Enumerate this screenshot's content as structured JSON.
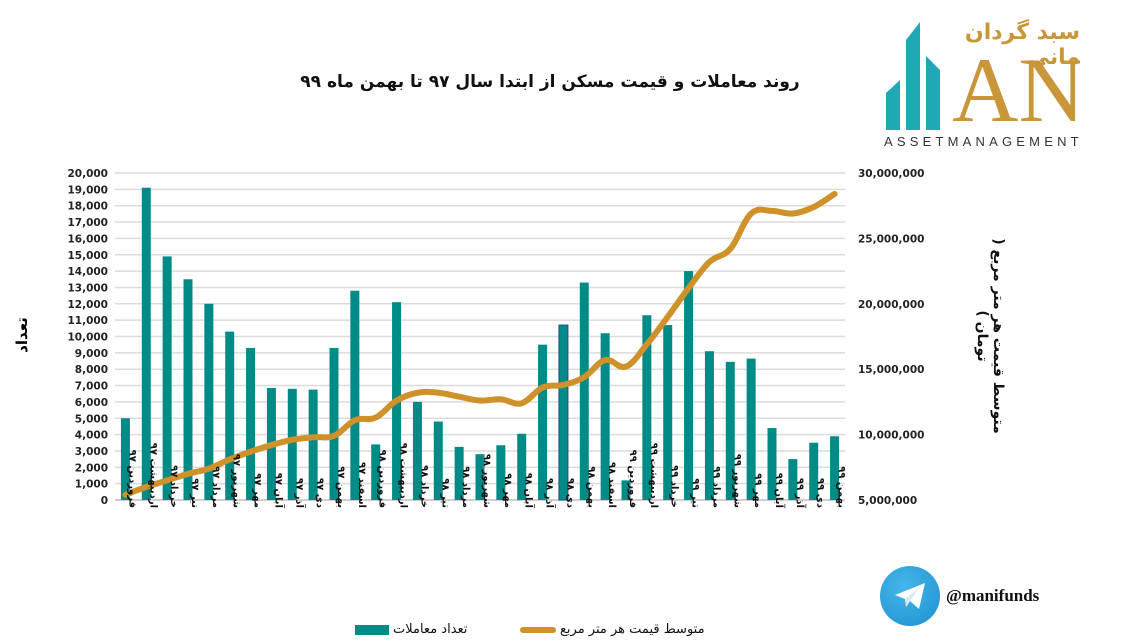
{
  "page": {
    "title": "روند معاملات و قیمت مسکن از ابتدا سال ۹۷ تا بهمن ماه ۹۹"
  },
  "logo": {
    "persian_name": "سبد گردان مانی",
    "brand_letters": "ANI",
    "subtitle": "ASSETMANAGEMENT"
  },
  "telegram": {
    "icon": "telegram-icon",
    "handle": "@manifunds"
  },
  "colors": {
    "bar": "#008b87",
    "line": "#cf9129",
    "grid": "#dcdcdc",
    "highlight_bar_edge": "#1f4e8c"
  },
  "chart_data": {
    "type": "bar",
    "combo": "bar+line (dual axis)",
    "title": "روند معاملات و قیمت مسکن از ابتدا سال ۹۷ تا بهمن ماه ۹۹",
    "ylabel": "تعداد",
    "ylabel_right": "متوسط قیمت هر متر مربع ( تومان )",
    "ylim": [
      0,
      20000
    ],
    "ylim_right": [
      5000000,
      30000000
    ],
    "yticks": [
      "0",
      "1,000",
      "2,000",
      "3,000",
      "4,000",
      "5,000",
      "6,000",
      "7,000",
      "8,000",
      "9,000",
      "10,000",
      "11,000",
      "12,000",
      "13,000",
      "14,000",
      "15,000",
      "16,000",
      "17,000",
      "18,000",
      "19,000",
      "20,000"
    ],
    "yticks_right": [
      "5,000,000",
      "10,000,000",
      "15,000,000",
      "20,000,000",
      "25,000,000",
      "30,000,000"
    ],
    "grid": true,
    "legend_position": "bottom",
    "categories": [
      "فروردین ۹۷",
      "اردیبهشت ۹۷",
      "خرداد ۹۷",
      "تیر ۹۷",
      "مرداد ۹۷",
      "شهریور ۹۷",
      "مهر ۹۷",
      "آبان ۹۷",
      "آذر ۹۷",
      "دی ۹۷",
      "بهمن ۹۷",
      "اسفند ۹۷",
      "فروردین ۹۸",
      "اردیبهشت ۹۸",
      "خرداد ۹۸",
      "تیر ۹۸",
      "مرداد ۹۸",
      "شهریور ۹۸",
      "مهر ۹۸",
      "آبان ۹۸",
      "آذر ۹۸",
      "دی ۹۸",
      "بهمن ۹۸",
      "اسفند ۹۸",
      "فروردین ۹۹",
      "اردیبهشت ۹۹",
      "خرداد ۹۹",
      "تیر ۹۹",
      "مرداد ۹۹",
      "شهریور ۹۹",
      "مهر ۹۹",
      "آبان ۹۹",
      "آذر ۹۹",
      "دی ۹۹",
      "بهمن ۹۹"
    ],
    "series": [
      {
        "name": "تعداد معاملات",
        "type": "bar",
        "axis": "left",
        "values": [
          5000,
          19100,
          14900,
          13500,
          12000,
          10300,
          9300,
          6850,
          6800,
          6750,
          9300,
          12800,
          3400,
          12100,
          6000,
          4800,
          3250,
          2800,
          3350,
          4050,
          9500,
          10700,
          13300,
          10200,
          1200,
          11300,
          10700,
          14000,
          9100,
          8450,
          8650,
          4400,
          2500,
          3500,
          3900
        ]
      },
      {
        "name": "متوسط قیمت هر متر مربع",
        "type": "line",
        "axis": "right",
        "values": [
          5400000,
          6000000,
          6500000,
          7000000,
          7400000,
          8100000,
          8700000,
          9200000,
          9600000,
          9800000,
          9900000,
          11100000,
          11300000,
          12600000,
          13200000,
          13200000,
          12900000,
          12600000,
          12700000,
          12400000,
          13600000,
          13800000,
          14400000,
          15700000,
          15200000,
          16900000,
          19000000,
          21200000,
          23200000,
          24200000,
          26900000,
          27100000,
          26900000,
          27400000,
          28400000
        ]
      }
    ],
    "highlighted_category": "دی ۹۸"
  },
  "legend": {
    "bar_label": "تعداد معاملات",
    "line_label": "متوسط قیمت هر متر مربع"
  }
}
